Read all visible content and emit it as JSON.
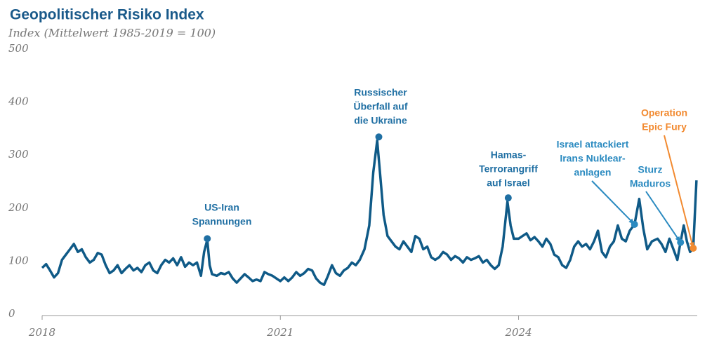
{
  "chart_data": {
    "type": "line",
    "title": "Geopolitischer Risiko Index",
    "subtitle": "Index (Mittelwert 1985-2019 = 100)",
    "xlim": [
      2018,
      2026.25
    ],
    "xticks": [
      2018,
      2021,
      2024
    ],
    "ylim": [
      0,
      500
    ],
    "yticks": [
      0,
      100,
      200,
      300,
      400,
      500
    ],
    "grid": false,
    "series": [
      {
        "color": "#0f5a87",
        "x": [
          2018.0,
          2018.05,
          2018.1,
          2018.15,
          2018.2,
          2018.25,
          2018.3,
          2018.35,
          2018.4,
          2018.45,
          2018.5,
          2018.55,
          2018.6,
          2018.65,
          2018.7,
          2018.75,
          2018.8,
          2018.85,
          2018.9,
          2018.95,
          2019.0,
          2019.05,
          2019.1,
          2019.15,
          2019.2,
          2019.25,
          2019.3,
          2019.35,
          2019.4,
          2019.45,
          2019.5,
          2019.55,
          2019.6,
          2019.65,
          2019.7,
          2019.75,
          2019.8,
          2019.85,
          2019.9,
          2019.95,
          2020.0,
          2020.04,
          2020.08,
          2020.11,
          2020.14,
          2020.2,
          2020.25,
          2020.3,
          2020.35,
          2020.4,
          2020.45,
          2020.5,
          2020.55,
          2020.6,
          2020.65,
          2020.7,
          2020.75,
          2020.8,
          2020.85,
          2020.9,
          2020.95,
          2021.0,
          2021.05,
          2021.1,
          2021.15,
          2021.2,
          2021.25,
          2021.3,
          2021.35,
          2021.4,
          2021.45,
          2021.5,
          2021.55,
          2021.6,
          2021.65,
          2021.7,
          2021.75,
          2021.8,
          2021.85,
          2021.9,
          2021.95,
          2022.0,
          2022.06,
          2022.12,
          2022.17,
          2022.22,
          2022.26,
          2022.3,
          2022.35,
          2022.4,
          2022.45,
          2022.5,
          2022.55,
          2022.6,
          2022.65,
          2022.7,
          2022.75,
          2022.8,
          2022.85,
          2022.9,
          2022.95,
          2023.0,
          2023.05,
          2023.1,
          2023.15,
          2023.2,
          2023.25,
          2023.3,
          2023.35,
          2023.4,
          2023.45,
          2023.5,
          2023.55,
          2023.6,
          2023.65,
          2023.7,
          2023.75,
          2023.8,
          2023.86,
          2023.9,
          2023.94,
          2024.0,
          2024.05,
          2024.1,
          2024.15,
          2024.2,
          2024.25,
          2024.3,
          2024.35,
          2024.4,
          2024.45,
          2024.5,
          2024.55,
          2024.6,
          2024.65,
          2024.7,
          2024.75,
          2024.8,
          2024.85,
          2024.9,
          2024.95,
          2025.0,
          2025.05,
          2025.1,
          2025.15,
          2025.2,
          2025.25,
          2025.3,
          2025.35,
          2025.4,
          2025.46,
          2025.52,
          2025.57,
          2025.62,
          2025.68,
          2025.75,
          2025.8,
          2025.85,
          2025.9,
          2025.95,
          2026.0,
          2026.04,
          2026.08,
          2026.12,
          2026.16,
          2026.2,
          2026.24
        ],
        "values": [
          90,
          97,
          85,
          72,
          80,
          105,
          115,
          125,
          135,
          120,
          125,
          110,
          100,
          105,
          118,
          115,
          95,
          80,
          85,
          95,
          80,
          88,
          95,
          85,
          90,
          82,
          95,
          100,
          85,
          80,
          95,
          105,
          100,
          108,
          95,
          110,
          92,
          100,
          95,
          100,
          75,
          120,
          143,
          95,
          78,
          75,
          80,
          78,
          82,
          70,
          62,
          70,
          78,
          72,
          65,
          68,
          65,
          82,
          78,
          75,
          70,
          65,
          72,
          65,
          72,
          82,
          75,
          80,
          88,
          85,
          70,
          62,
          58,
          75,
          95,
          80,
          75,
          85,
          90,
          100,
          95,
          105,
          125,
          170,
          270,
          330,
          260,
          190,
          150,
          140,
          130,
          125,
          140,
          130,
          120,
          150,
          145,
          125,
          130,
          110,
          105,
          110,
          120,
          115,
          105,
          112,
          108,
          100,
          110,
          105,
          108,
          112,
          100,
          105,
          95,
          88,
          95,
          130,
          215,
          170,
          145,
          145,
          150,
          155,
          142,
          148,
          140,
          130,
          145,
          135,
          115,
          110,
          95,
          90,
          105,
          130,
          140,
          130,
          135,
          125,
          140,
          160,
          120,
          110,
          130,
          140,
          170,
          145,
          140,
          160,
          172,
          220,
          165,
          125,
          140,
          145,
          135,
          120,
          145,
          125,
          105,
          139,
          170,
          140,
          120,
          127,
          255
        ]
      }
    ],
    "annotations": [
      {
        "text": [
          "US-Iran",
          "Spannungen"
        ],
        "x": 2020.08,
        "y": 145,
        "color": "#1f6fa3"
      },
      {
        "text": [
          "Russischer",
          "Überfall auf",
          "die Ukraine"
        ],
        "x": 2022.24,
        "y": 337,
        "color": "#1f6fa3"
      },
      {
        "text": [
          "Hamas-",
          "Terrorangriff",
          "auf Israel"
        ],
        "x": 2023.87,
        "y": 222,
        "color": "#1f6fa3"
      },
      {
        "text": [
          "Israel attackiert",
          "Irans Nuklear-",
          "anlagen"
        ],
        "x": 2025.46,
        "y": 172,
        "color": "#2a8ac0"
      },
      {
        "text": [
          "Sturz",
          "Maduros"
        ],
        "x": 2026.04,
        "y": 138,
        "color": "#2a8ac0"
      },
      {
        "text": [
          "Operation",
          "Epic Fury"
        ],
        "x": 2026.2,
        "y": 127,
        "color": "#f28a30"
      }
    ]
  }
}
